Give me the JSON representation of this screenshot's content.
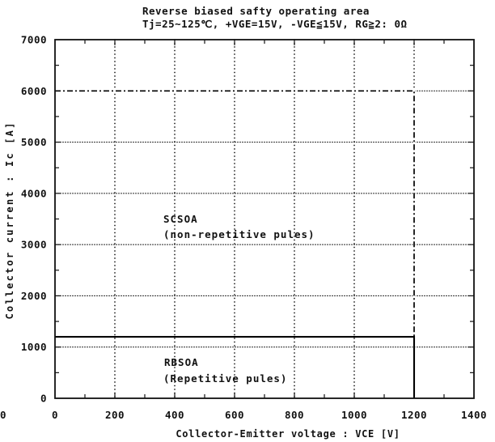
{
  "edge_text": "0",
  "chart_data": {
    "type": "line",
    "title": "Reverse biased safty operating area",
    "subtitle": "Tj=25~125℃, +VGE=15V, -VGE≦15V, RG≧2: 0Ω",
    "xlabel": "Collector-Emitter voltage : VCE [V]",
    "ylabel": "Collector current : Ic [A]",
    "xlim": [
      0,
      1400
    ],
    "ylim": [
      0,
      7000
    ],
    "xticks": [
      0,
      200,
      400,
      600,
      800,
      1000,
      1200,
      1400
    ],
    "yticks": [
      0,
      1000,
      2000,
      3000,
      4000,
      5000,
      6000,
      7000
    ],
    "minor_ticks": {
      "x_step": 100,
      "y_step": 500
    },
    "grid": true,
    "series": [
      {
        "name": "SCSOA",
        "note": "(non-repetitive pules)",
        "color": "#000000",
        "x": [
          0,
          1200,
          1200
        ],
        "y": [
          6000,
          6000,
          0
        ]
      },
      {
        "name": "RBSOA",
        "note": "(Repetitive pules)",
        "color": "#000000",
        "x": [
          0,
          1200,
          1200
        ],
        "y": [
          1200,
          1200,
          0
        ]
      }
    ]
  }
}
